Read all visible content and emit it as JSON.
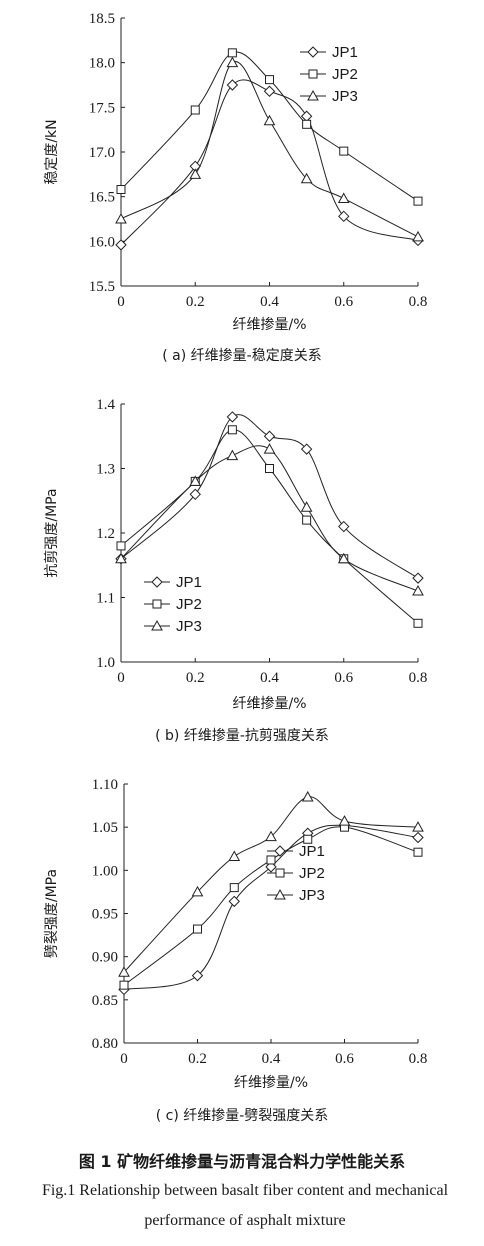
{
  "chart_data": [
    {
      "type": "line",
      "subtitle": "( a)  纤维掺量-稳定度关系",
      "xlabel": "纤维掺量/%",
      "ylabel": "稳定度/kN",
      "xlim": [
        0,
        0.8
      ],
      "ylim": [
        15.5,
        18.5
      ],
      "xticks": [
        "0",
        "0.2",
        "0.4",
        "0.6",
        "0.8"
      ],
      "yticks": [
        "15.5",
        "16.0",
        "16.5",
        "17.0",
        "17.5",
        "18.0",
        "18.5"
      ],
      "legend": "top-right",
      "grid": false,
      "x": [
        0,
        0.2,
        0.3,
        0.4,
        0.5,
        0.6,
        0.8
      ],
      "series": [
        {
          "name": "JP1",
          "marker": "diamond",
          "values": [
            15.96,
            16.84,
            17.75,
            17.68,
            17.4,
            16.28,
            16.01
          ]
        },
        {
          "name": "JP2",
          "marker": "square",
          "values": [
            16.58,
            17.47,
            18.11,
            17.81,
            17.31,
            17.01,
            16.45
          ]
        },
        {
          "name": "JP3",
          "marker": "triangle",
          "values": [
            16.25,
            16.75,
            18.0,
            17.35,
            16.7,
            16.48,
            16.05
          ]
        }
      ]
    },
    {
      "type": "line",
      "subtitle": "( b)  纤维掺量-抗剪强度关系",
      "xlabel": "纤维掺量/%",
      "ylabel": "抗剪强度/MPa",
      "xlim": [
        0,
        0.8
      ],
      "ylim": [
        1.0,
        1.4
      ],
      "xticks": [
        "0",
        "0.2",
        "0.4",
        "0.6",
        "0.8"
      ],
      "yticks": [
        "1.0",
        "1.1",
        "1.2",
        "1.3",
        "1.4"
      ],
      "legend": "bottom-left",
      "grid": false,
      "x": [
        0,
        0.2,
        0.3,
        0.4,
        0.5,
        0.6,
        0.8
      ],
      "series": [
        {
          "name": "JP1",
          "marker": "diamond",
          "values": [
            1.16,
            1.26,
            1.38,
            1.35,
            1.33,
            1.21,
            1.13
          ]
        },
        {
          "name": "JP2",
          "marker": "square",
          "values": [
            1.18,
            1.28,
            1.36,
            1.3,
            1.22,
            1.16,
            1.06
          ]
        },
        {
          "name": "JP3",
          "marker": "triangle",
          "values": [
            1.16,
            1.28,
            1.32,
            1.33,
            1.24,
            1.16,
            1.11
          ]
        }
      ]
    },
    {
      "type": "line",
      "subtitle": "( c)  纤维掺量-劈裂强度关系",
      "xlabel": "纤维掺量/%",
      "ylabel": "劈裂强度/MPa",
      "xlim": [
        0,
        0.8
      ],
      "ylim": [
        0.8,
        1.1
      ],
      "xticks": [
        "0",
        "0.2",
        "0.4",
        "0.6",
        "0.8"
      ],
      "yticks": [
        "0.80",
        "0.85",
        "0.90",
        "0.95",
        "1.00",
        "1.05",
        "1.10"
      ],
      "legend": "center-right",
      "grid": false,
      "x": [
        0,
        0.2,
        0.3,
        0.4,
        0.5,
        0.6,
        0.8
      ],
      "series": [
        {
          "name": "JP1",
          "marker": "diamond",
          "values": [
            0.862,
            0.878,
            0.964,
            1.004,
            1.043,
            1.052,
            1.038
          ]
        },
        {
          "name": "JP2",
          "marker": "square",
          "values": [
            0.867,
            0.932,
            0.98,
            1.012,
            1.036,
            1.05,
            1.021
          ]
        },
        {
          "name": "JP3",
          "marker": "triangle",
          "values": [
            0.882,
            0.975,
            1.016,
            1.039,
            1.085,
            1.057,
            1.05
          ]
        }
      ]
    }
  ],
  "figure_caption_cn": "图 1   矿物纤维掺量与沥青混合料力学性能关系",
  "figure_caption_en": "Fig.1   Relationship between basalt fiber content and mechanical performance of asphalt mixture"
}
